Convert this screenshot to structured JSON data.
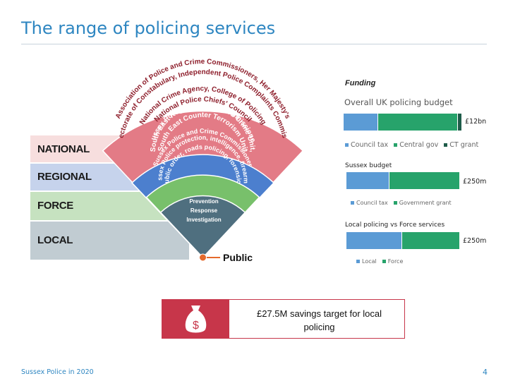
{
  "slide": {
    "title": "The range of policing services",
    "footer": "Sussex Police in 2020",
    "page_number": "4"
  },
  "tiers": [
    {
      "label": "NATIONAL",
      "color": "#f7dede"
    },
    {
      "label": "REGIONAL",
      "color": "#c6d3ec"
    },
    {
      "label": "FORCE",
      "color": "#c6e2c0"
    },
    {
      "label": "LOCAL",
      "color": "#c1ccd2"
    }
  ],
  "arcs": {
    "national_1": "Association of Police and Crime Commissioners, Her Majesty's",
    "national_2": "Inspectorate of Constabulary, Independent Police Complaints Commission",
    "national_3": "National Crime Agency, College of Policing",
    "national_4": "National Police Chiefs' Council",
    "regional_1": "Sussex Police and Crime Commissioner",
    "regional_2": "South East Regional Organised Crime Unit,",
    "regional_3": "South East Counter Terrorism Unit",
    "force_1": "Sussex Police and Crime Commissioner",
    "force_2": "Sussex Police protection, intelligence, firearms,",
    "force_3": "public order, roads policing, forensics",
    "local_1": "Prevention",
    "local_2": "Response",
    "local_3": "Investigation",
    "public": "Public"
  },
  "colors": {
    "national_band": "#e37b86",
    "regional_band": "#4c7fce",
    "force_band": "#78c06b",
    "local_band": "#4f6f7f",
    "accent": "#c7364a",
    "bar_blue": "#5b9bd5",
    "bar_green": "#27a36b",
    "bar_dark": "#1f5c4a"
  },
  "funding": {
    "title": "Funding",
    "charts": [
      {
        "title": "Overall UK policing budget",
        "value_label": "£12bn",
        "segments": [
          {
            "name": "Council tax",
            "share": 0.29,
            "color": "#5b9bd5"
          },
          {
            "name": "Central gov",
            "share": 0.68,
            "color": "#27a36b"
          },
          {
            "name": "CT grant",
            "share": 0.03,
            "color": "#1f5c4a"
          }
        ]
      },
      {
        "title": "Sussex budget",
        "value_label": "£250m",
        "segments": [
          {
            "name": "Council tax",
            "share": 0.38,
            "color": "#5b9bd5"
          },
          {
            "name": "Government grant",
            "share": 0.62,
            "color": "#27a36b"
          }
        ]
      },
      {
        "title": "Local policing vs Force services",
        "value_label": "£250m",
        "segments": [
          {
            "name": "Local",
            "share": 0.49,
            "color": "#5b9bd5"
          },
          {
            "name": "Force",
            "share": 0.51,
            "color": "#27a36b"
          }
        ]
      }
    ]
  },
  "savings": {
    "icon_symbol": "$",
    "icon_name": "money-bag-icon",
    "text_line1": "£27.5M savings target for local",
    "text_line2": "policing"
  }
}
